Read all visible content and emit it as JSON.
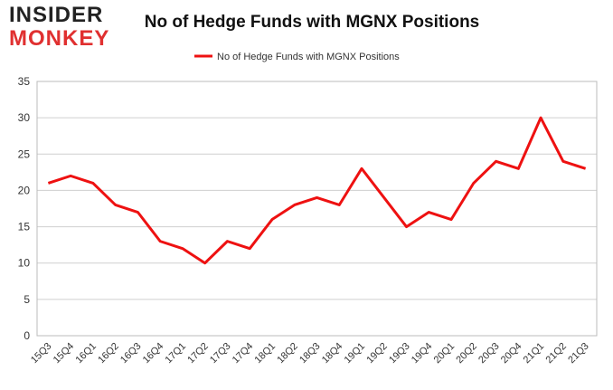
{
  "logo": {
    "line1": "INSIDER",
    "line2": "MONKEY"
  },
  "chart_data": {
    "type": "line",
    "title": "No of Hedge Funds with MGNX Positions",
    "categories": [
      "15Q3",
      "15Q4",
      "16Q1",
      "16Q2",
      "16Q3",
      "16Q4",
      "17Q1",
      "17Q2",
      "17Q3",
      "17Q4",
      "18Q1",
      "18Q2",
      "18Q3",
      "18Q4",
      "19Q1",
      "19Q2",
      "19Q3",
      "19Q4",
      "20Q1",
      "20Q2",
      "20Q3",
      "20Q4",
      "21Q1",
      "21Q2",
      "21Q3"
    ],
    "series": [
      {
        "name": "No of Hedge Funds with MGNX Positions",
        "color": "#ee1111",
        "values": [
          21,
          22,
          21,
          18,
          17,
          13,
          12,
          10,
          13,
          12,
          16,
          18,
          19,
          18,
          23,
          19,
          15,
          17,
          16,
          21,
          24,
          23,
          30,
          24,
          23
        ]
      }
    ],
    "ylim": [
      0,
      35
    ],
    "yticks": [
      0,
      5,
      10,
      15,
      20,
      25,
      30,
      35
    ],
    "grid": true,
    "legend": "top"
  }
}
